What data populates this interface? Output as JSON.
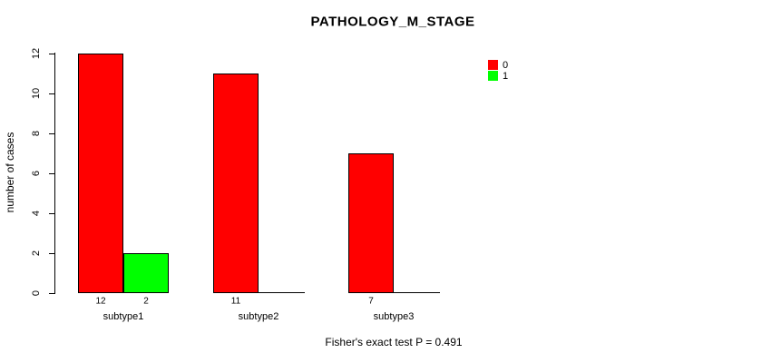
{
  "chart_data": {
    "type": "bar",
    "title": "PATHOLOGY_M_STAGE",
    "xlabel": "",
    "ylabel": "number of cases",
    "categories": [
      "subtype1",
      "subtype2",
      "subtype3"
    ],
    "series": [
      {
        "name": "0",
        "color": "#FF0000",
        "values": [
          12,
          11,
          7
        ]
      },
      {
        "name": "1",
        "color": "#00FF00",
        "values": [
          2,
          0,
          0
        ]
      }
    ],
    "visible_count_labels": [
      "12",
      "2",
      "11",
      "7"
    ],
    "ylim": [
      0,
      12
    ],
    "yticks": [
      0,
      2,
      4,
      6,
      8,
      10,
      12
    ],
    "grid": false,
    "legend_position": "top-right-inside",
    "annotation": "Fisher's exact test P = 0.491",
    "colors": {
      "axis": "#000000",
      "background": "#FFFFFF",
      "text": "#000000"
    }
  }
}
